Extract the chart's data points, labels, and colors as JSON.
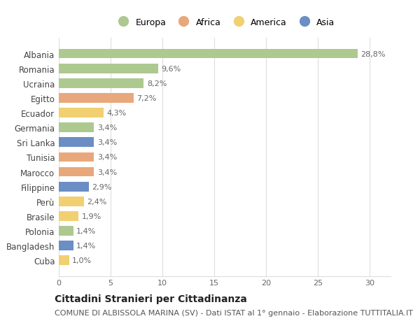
{
  "countries": [
    "Albania",
    "Romania",
    "Ucraina",
    "Egitto",
    "Ecuador",
    "Germania",
    "Sri Lanka",
    "Tunisia",
    "Marocco",
    "Filippine",
    "Perù",
    "Brasile",
    "Polonia",
    "Bangladesh",
    "Cuba"
  ],
  "values": [
    28.8,
    9.6,
    8.2,
    7.2,
    4.3,
    3.4,
    3.4,
    3.4,
    3.4,
    2.9,
    2.4,
    1.9,
    1.4,
    1.4,
    1.0
  ],
  "labels": [
    "28,8%",
    "9,6%",
    "8,2%",
    "7,2%",
    "4,3%",
    "3,4%",
    "3,4%",
    "3,4%",
    "3,4%",
    "2,9%",
    "2,4%",
    "1,9%",
    "1,4%",
    "1,4%",
    "1,0%"
  ],
  "continents": [
    "Europa",
    "Europa",
    "Europa",
    "Africa",
    "America",
    "Europa",
    "Asia",
    "Africa",
    "Africa",
    "Asia",
    "America",
    "America",
    "Europa",
    "Asia",
    "America"
  ],
  "continent_colors": {
    "Europa": "#adc990",
    "Africa": "#e8a87c",
    "America": "#f0d070",
    "Asia": "#6b8ec4"
  },
  "legend_order": [
    "Europa",
    "Africa",
    "America",
    "Asia"
  ],
  "title": "Cittadini Stranieri per Cittadinanza",
  "subtitle": "COMUNE DI ALBISSOLA MARINA (SV) - Dati ISTAT al 1° gennaio - Elaborazione TUTTITALIA.IT",
  "xlim": [
    0,
    32
  ],
  "xticks": [
    0,
    5,
    10,
    15,
    20,
    25,
    30
  ],
  "background_color": "#ffffff",
  "grid_color": "#dddddd",
  "bar_height": 0.65,
  "label_fontsize": 8,
  "title_fontsize": 10,
  "subtitle_fontsize": 8
}
